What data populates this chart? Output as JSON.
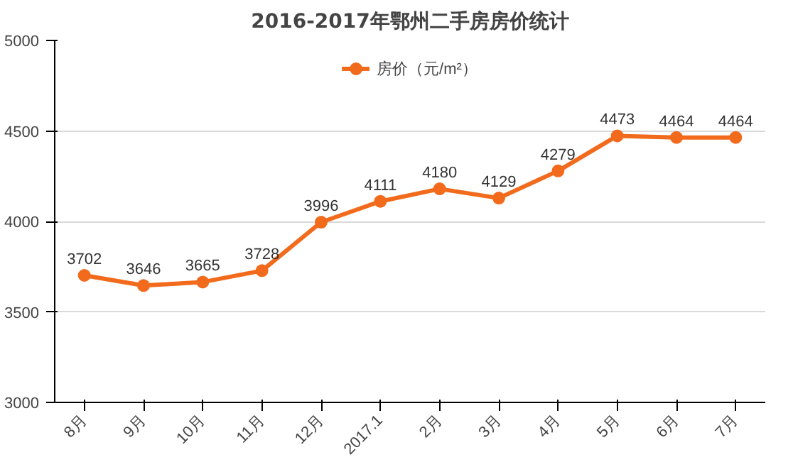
{
  "chart_data": {
    "type": "line",
    "title": "2016-2017年鄂州二手房房价统计",
    "categories": [
      "8月",
      "9月",
      "10月",
      "11月",
      "12月",
      "2017.1",
      "2月",
      "3月",
      "4月",
      "5月",
      "6月",
      "7月"
    ],
    "series": [
      {
        "name": "房价（元/m²）",
        "color": "#f26b1d",
        "values": [
          3702,
          3646,
          3665,
          3728,
          3996,
          4111,
          4180,
          4129,
          4279,
          4473,
          4464,
          4464
        ]
      }
    ],
    "ylim": [
      3000,
      5000
    ],
    "yticks": [
      3000,
      3500,
      4000,
      4500,
      5000
    ],
    "grid": "y",
    "legend": "top",
    "marker": "circle",
    "line_style": "solid",
    "data_labels": true
  }
}
